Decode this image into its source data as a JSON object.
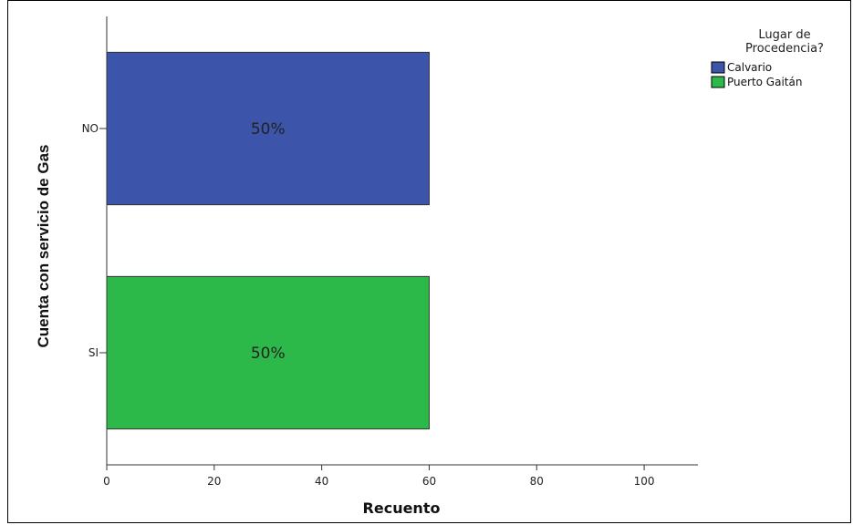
{
  "chart_data": {
    "type": "bar",
    "orientation": "horizontal",
    "categories": [
      "NO",
      "SI"
    ],
    "values": [
      60,
      60
    ],
    "data_labels": [
      "50%",
      "50%"
    ],
    "bar_colors": [
      "#3c55aa",
      "#2db84a"
    ],
    "xlabel": "Recuento",
    "ylabel": "Cuenta con servicio de Gas",
    "xlim": [
      0,
      110
    ],
    "xticks": [
      0,
      20,
      40,
      60,
      80,
      100
    ],
    "grid": false,
    "legend": {
      "title_lines": [
        "Lugar de",
        "Procedencia?"
      ],
      "placement": "top-right",
      "entries": [
        {
          "name": "Calvario",
          "color": "#3c55aa"
        },
        {
          "name": "Puerto Gaitán",
          "color": "#2db84a"
        }
      ]
    }
  }
}
